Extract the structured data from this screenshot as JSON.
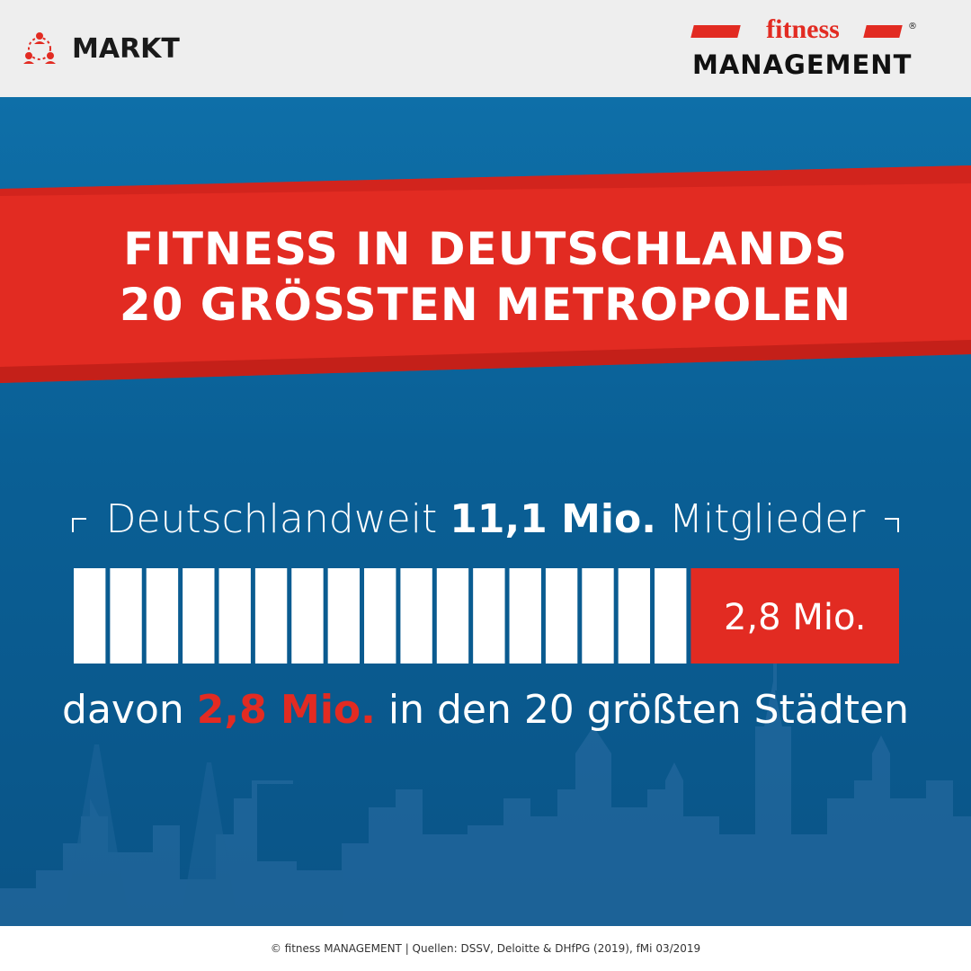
{
  "header": {
    "section_label": "MARKT",
    "section_icon": "people-network-icon",
    "logo": {
      "word": "fitness",
      "name": "MANAGEMENT",
      "registered": "®"
    }
  },
  "colors": {
    "accent_red": "#e22b22",
    "background_blue": "#0a5f95",
    "bar_white": "#ffffff"
  },
  "title_lines": [
    "FITNESS IN DEUTSCHLANDS",
    "20 GRÖSSTEN METROPOLEN"
  ],
  "summary": {
    "prefix": "Deutschlandweit",
    "value": "11,1 Mio.",
    "suffix": "Mitglieder"
  },
  "detail": {
    "prefix": "davon",
    "value": "2,8 Mio.",
    "suffix": "in den 20 größten Städten"
  },
  "chart_data": {
    "type": "bar",
    "orientation": "horizontal-stacked",
    "unit": "Mio.",
    "total": 11.1,
    "segments": [
      {
        "value": 8.3,
        "color": "#ffffff",
        "label": ""
      },
      {
        "value": 2.8,
        "color": "#e22b22",
        "label": "2,8 Mio."
      }
    ]
  },
  "footer": {
    "text": "© fitness MANAGEMENT  |  Quellen: DSSV, Deloitte & DHfPG (2019), fMi 03/2019"
  }
}
